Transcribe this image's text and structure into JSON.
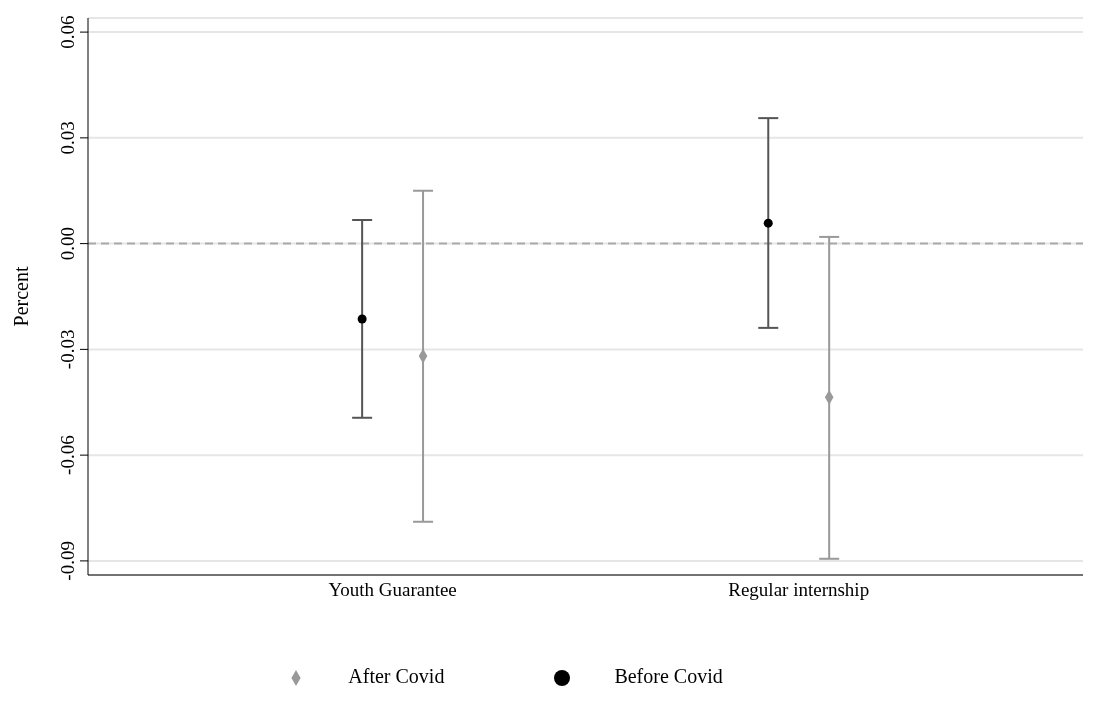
{
  "chart_data": {
    "type": "scatter",
    "ylabel": "Percent",
    "categories": [
      "Youth Guarantee",
      "Regular internship"
    ],
    "series": [
      {
        "name": "Before Covid",
        "color": "#000000",
        "marker": "circle",
        "values": [
          -0.0214,
          0.0058
        ],
        "errors": [
          [
            -0.0494,
            0.0067
          ],
          [
            -0.0239,
            0.0356
          ]
        ]
      },
      {
        "name": "After Covid",
        "color": "#999999",
        "marker": "diamond",
        "values": [
          -0.0319,
          -0.0436
        ],
        "errors": [
          [
            -0.0789,
            0.015
          ],
          [
            -0.0894,
            0.0019
          ]
        ]
      }
    ],
    "ylim": [
      -0.094,
      0.064
    ],
    "yticks": [
      {
        "value": -0.09,
        "label": "-0.09"
      },
      {
        "value": -0.06,
        "label": "-0.06"
      },
      {
        "value": -0.03,
        "label": "-0.03"
      },
      {
        "value": 0,
        "label": "0.00"
      },
      {
        "value": 0.03,
        "label": "0.03"
      },
      {
        "value": 0.06,
        "label": "0.06"
      }
    ],
    "grid": "y",
    "legend": "bottom",
    "ref_lines": [
      {
        "axis": "y",
        "value": 0,
        "color": "#aaaaaa",
        "line_style": "dashed"
      }
    ]
  }
}
